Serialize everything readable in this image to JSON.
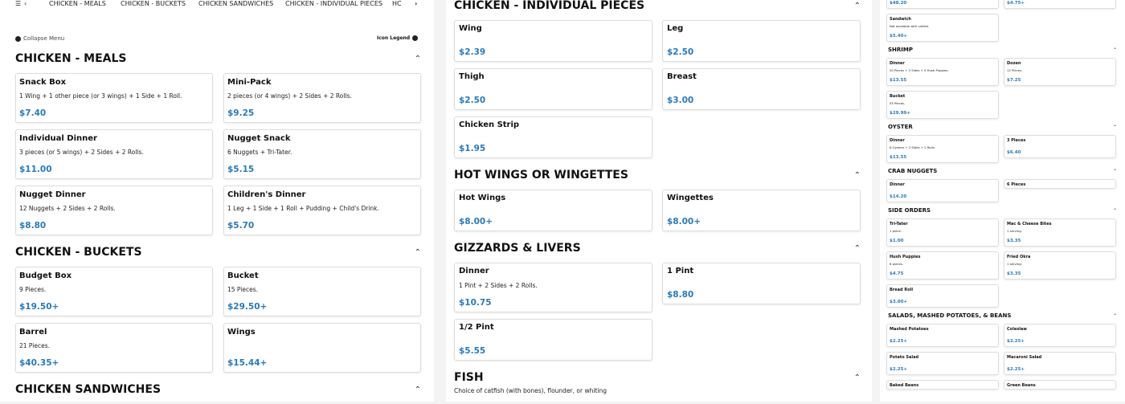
{
  "nav": {
    "tabs": [
      "CHICKEN - MEALS",
      "CHICKEN - BUCKETS",
      "CHICKEN SANDWICHES",
      "CHICKEN - INDIVIDUAL PIECES",
      "HC"
    ],
    "collapse": "Collapse Menu",
    "legend": "Icon Legend",
    "icons": [
      "list-icon",
      "chevron-left-icon",
      "chevron-right-icon"
    ]
  },
  "accent": "#2a7ab8",
  "panels": [
    [
      {
        "title": "CHICKEN - MEALS",
        "items": [
          {
            "name": "Snack Box",
            "desc": "1 Wing + 1 other piece (or 3 wings) + 1 Side + 1 Roll.",
            "price": "$7.40"
          },
          {
            "name": "Mini-Pack",
            "desc": "2 pieces (or 4 wings) + 2 Sides + 2 Rolls.",
            "price": "$9.25"
          },
          {
            "name": "Individual Dinner",
            "desc": "3 pieces (or 5 wings) + 2 Sides + 2 Rolls.",
            "price": "$11.00"
          },
          {
            "name": "Nugget Snack",
            "desc": "6 Nuggets + Tri-Tater.",
            "price": "$5.15"
          },
          {
            "name": "Nugget Dinner",
            "desc": "12 Nuggets + 2 Sides + 2 Rolls.",
            "price": "$8.80"
          },
          {
            "name": "Children's Dinner",
            "desc": "1 Leg + 1 Side + 1 Roll + Pudding + Child's Drink.",
            "price": "$5.70"
          }
        ]
      },
      {
        "title": "CHICKEN - BUCKETS",
        "items": [
          {
            "name": "Budget Box",
            "desc": "9 Pieces.",
            "price": "$19.50+"
          },
          {
            "name": "Bucket",
            "desc": "15 Pieces.",
            "price": "$29.50+"
          },
          {
            "name": "Barrel",
            "desc": "21 Pieces.",
            "price": "$40.35+"
          },
          {
            "name": "Wings",
            "desc": "",
            "price": "$15.44+"
          }
        ]
      },
      {
        "title": "CHICKEN SANDWICHES",
        "items": []
      }
    ],
    [
      {
        "title": "CHICKEN - INDIVIDUAL PIECES",
        "items": [
          {
            "name": "Wing",
            "price": "$2.39"
          },
          {
            "name": "Leg",
            "price": "$2.50"
          },
          {
            "name": "Thigh",
            "price": "$2.50"
          },
          {
            "name": "Breast",
            "price": "$3.00"
          },
          {
            "name": "Chicken Strip",
            "price": "$1.95"
          }
        ]
      },
      {
        "title": "HOT WINGS OR WINGETTES",
        "items": [
          {
            "name": "Hot Wings",
            "price": "$8.00+"
          },
          {
            "name": "Wingettes",
            "price": "$8.00+"
          }
        ]
      },
      {
        "title": "GIZZARDS & LIVERS",
        "items": [
          {
            "name": "Dinner",
            "desc": "1 Pint + 2 Sides + 2 Rolls.",
            "price": "$10.75"
          },
          {
            "name": "1 Pint",
            "price": "$8.80"
          },
          {
            "name": "1/2 Pint",
            "price": "$5.55"
          }
        ]
      },
      {
        "title": "FISH",
        "desc": "Choice of catfish (with bones), flounder, or whiting",
        "items": []
      }
    ],
    [
      {
        "title": "",
        "items": [
          {
            "name": "",
            "price": "$48.20"
          },
          {
            "name": "",
            "price": "$4.75+"
          },
          {
            "name": "Sandwich",
            "desc": "Not available with catfish.",
            "price": "$5.40+"
          }
        ]
      },
      {
        "title": "SHRIMP",
        "items": [
          {
            "name": "Dinner",
            "desc": "20 Pieces + 2 Sides + 4 Hush Puppies.",
            "price": "$13.55"
          },
          {
            "name": "Dozen",
            "desc": "12 Pieces.",
            "price": "$7.25"
          },
          {
            "name": "Bucket",
            "desc": "55 Pieces.",
            "price": "$29.99+"
          }
        ]
      },
      {
        "title": "OYSTER",
        "items": [
          {
            "name": "Dinner",
            "desc": "6 Oysters + 2 Sides + 2 Rolls.",
            "price": "$13.55"
          },
          {
            "name": "3 Pieces",
            "price": "$6.40"
          }
        ]
      },
      {
        "title": "CRAB NUGGETS",
        "items": [
          {
            "name": "Dinner",
            "price": "$14.20"
          },
          {
            "name": "6 Pieces",
            "price": ""
          }
        ]
      },
      {
        "title": "SIDE ORDERS",
        "items": [
          {
            "name": "Tri-Tater",
            "desc": "1 piece.",
            "price": "$1.00"
          },
          {
            "name": "Mac & Cheese Bites",
            "desc": "1 serving.",
            "price": "$3.35"
          },
          {
            "name": "Hush Puppies",
            "desc": "6 pieces.",
            "price": "$4.75"
          },
          {
            "name": "Fried Okra",
            "desc": "1 serving.",
            "price": "$3.35"
          },
          {
            "name": "Bread Roll",
            "price": "$3.00+"
          }
        ]
      },
      {
        "title": "SALADS, MASHED POTATOES, & BEANS",
        "items": [
          {
            "name": "Mashed Potatoes",
            "price": "$2.25+"
          },
          {
            "name": "Coleslaw",
            "price": "$2.25+"
          },
          {
            "name": "Potato Salad",
            "price": "$2.25+"
          },
          {
            "name": "Macaroni Salad",
            "price": "$2.25+"
          },
          {
            "name": "Baked Beans",
            "price": ""
          },
          {
            "name": "Green Beans",
            "price": ""
          }
        ]
      }
    ]
  ]
}
